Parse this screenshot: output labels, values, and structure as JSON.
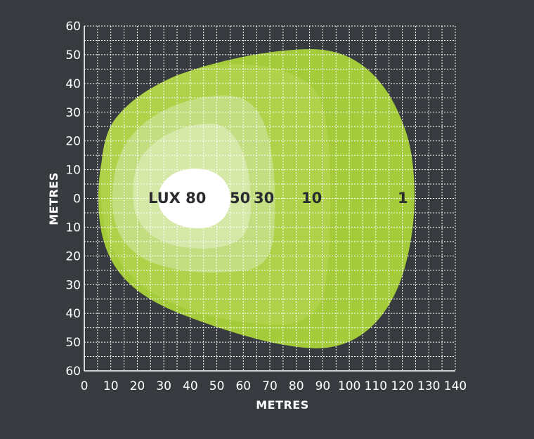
{
  "chart_data": {
    "type": "area",
    "title": "",
    "xlabel": "METRES",
    "ylabel": "METRES",
    "xlim": [
      0,
      140
    ],
    "ylim": [
      -60,
      60
    ],
    "x_ticks": [
      "0",
      "10",
      "20",
      "30",
      "40",
      "50",
      "60",
      "70",
      "80",
      "90",
      "100",
      "110",
      "120",
      "130",
      "140"
    ],
    "y_ticks": [
      "60",
      "50",
      "40",
      "30",
      "20",
      "10",
      "0",
      "10",
      "20",
      "30",
      "40",
      "50",
      "60"
    ],
    "grid": true,
    "zones": [
      {
        "label": "1",
        "lux": 1,
        "x_extent": [
          6,
          125
        ],
        "y_extent": [
          -52,
          52
        ],
        "color": "#a4cc3a"
      },
      {
        "label": "10",
        "lux": 10,
        "x_extent": [
          8,
          92
        ],
        "y_extent": [
          -45,
          45
        ],
        "color": "#afd24a"
      },
      {
        "label": "30",
        "lux": 30,
        "x_extent": [
          14,
          73
        ],
        "y_extent": [
          -26,
          36
        ],
        "color": "#c3de80"
      },
      {
        "label": "50",
        "lux": 50,
        "x_extent": [
          20,
          63
        ],
        "y_extent": [
          -17,
          26
        ],
        "color": "#d6e8a8"
      },
      {
        "label": "80",
        "lux": 80,
        "x_extent": [
          28,
          55
        ],
        "y_extent": [
          -10,
          10
        ],
        "color": "#ffffff"
      }
    ],
    "zone_prefix": "LUX"
  },
  "labels": {
    "lux_prefix": "LUX 80",
    "z50": "50",
    "z30": "30",
    "z10": "10",
    "z1": "1"
  }
}
